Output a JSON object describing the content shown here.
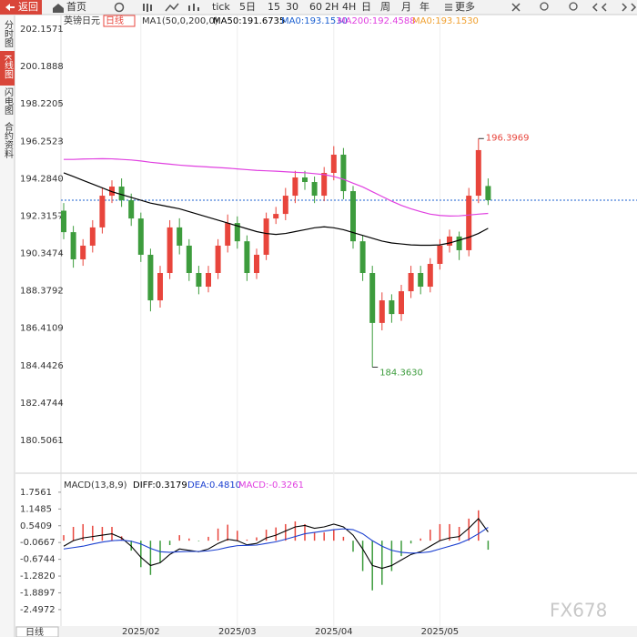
{
  "toolbar": [
    "返回",
    "首页",
    "tick",
    "5日",
    "15",
    "30",
    "60",
    "2H",
    "4H",
    "日",
    "周",
    "月",
    "年",
    "更多"
  ],
  "sidebar": [
    "分时图",
    "K线图",
    "闪电图",
    "合约资料"
  ],
  "bottom_button": "日线",
  "watermark": "FX678",
  "chart_data": [
    {
      "type": "candlestick",
      "title": "英镑日元",
      "period_label": "日线",
      "indicator": "MA1(50,0,200,0)",
      "categories": [
        null,
        null,
        null,
        null,
        null,
        null,
        null,
        null,
        "2025/02",
        null,
        null,
        null,
        null,
        null,
        null,
        null,
        null,
        null,
        "2025/03",
        null,
        null,
        null,
        null,
        null,
        null,
        null,
        null,
        null,
        "2025/04",
        null,
        null,
        null,
        null,
        null,
        null,
        null,
        null,
        null,
        null,
        "2025/05",
        null,
        null,
        null,
        null,
        null
      ],
      "open": [
        192.6,
        191.47,
        190.04,
        190.76,
        191.72,
        193.39,
        193.87,
        193.15,
        192.19,
        190.28,
        187.88,
        189.32,
        191.72,
        190.76,
        189.32,
        188.6,
        189.32,
        190.76,
        191.95,
        190.99,
        189.32,
        190.28,
        192.19,
        192.43,
        193.39,
        194.35,
        194.11,
        193.39,
        194.59,
        195.55,
        193.63,
        190.99,
        189.32,
        186.69,
        187.88,
        187.16,
        188.36,
        189.32,
        188.6,
        189.8,
        190.76,
        191.24,
        190.52,
        193.39,
        193.9
      ],
      "high": [
        193.0,
        191.8,
        191.1,
        192.1,
        193.8,
        194.2,
        194.3,
        193.5,
        192.5,
        190.6,
        189.7,
        192.1,
        192.2,
        191.1,
        189.7,
        189.7,
        191.1,
        192.4,
        192.3,
        191.3,
        190.6,
        192.5,
        192.8,
        193.8,
        194.7,
        194.7,
        194.4,
        194.9,
        196.0,
        195.9,
        193.9,
        191.3,
        189.7,
        188.3,
        188.2,
        188.7,
        189.7,
        189.7,
        190.1,
        191.1,
        191.6,
        191.5,
        193.8,
        196.3969,
        194.3
      ],
      "low": [
        191.1,
        189.6,
        189.7,
        190.4,
        191.4,
        193.0,
        192.8,
        191.8,
        189.9,
        187.3,
        187.5,
        189.0,
        190.3,
        188.9,
        188.2,
        188.3,
        189.0,
        190.4,
        190.6,
        188.9,
        189.0,
        190.0,
        191.9,
        192.1,
        193.0,
        193.7,
        193.0,
        193.1,
        194.2,
        193.2,
        190.6,
        188.9,
        184.363,
        186.3,
        186.7,
        186.8,
        188.0,
        188.2,
        188.3,
        189.5,
        190.4,
        190.0,
        190.2,
        193.0,
        192.9
      ],
      "close": [
        191.47,
        190.04,
        190.76,
        191.72,
        193.39,
        193.87,
        193.15,
        192.19,
        190.28,
        187.88,
        189.32,
        191.72,
        190.76,
        189.32,
        188.6,
        189.32,
        190.76,
        191.95,
        190.99,
        189.32,
        190.28,
        192.19,
        192.43,
        193.39,
        194.35,
        194.11,
        193.39,
        194.59,
        195.55,
        193.63,
        190.99,
        189.32,
        186.69,
        187.88,
        187.16,
        188.36,
        189.32,
        188.6,
        189.8,
        190.76,
        191.24,
        190.52,
        193.39,
        195.79,
        193.153
      ],
      "up_color": "#e8453c",
      "down_color": "#3d9c3d",
      "series": [
        {
          "name": "MA50:191.6735",
          "color": "#000000",
          "values": [
            194.59,
            194.4,
            194.2,
            194.0,
            193.8,
            193.6,
            193.45,
            193.3,
            193.15,
            193.0,
            192.9,
            192.8,
            192.7,
            192.55,
            192.4,
            192.25,
            192.1,
            191.95,
            191.8,
            191.65,
            191.5,
            191.4,
            191.35,
            191.4,
            191.5,
            191.6,
            191.7,
            191.75,
            191.7,
            191.6,
            191.45,
            191.3,
            191.15,
            191.0,
            190.9,
            190.85,
            190.8,
            190.78,
            190.78,
            190.8,
            190.9,
            191.05,
            191.2,
            191.4,
            191.6735
          ]
        },
        {
          "name": "MA200:192.4588",
          "color": "#e040e0",
          "values": [
            195.3,
            195.3,
            195.32,
            195.33,
            195.34,
            195.33,
            195.3,
            195.27,
            195.22,
            195.15,
            195.1,
            195.05,
            195.0,
            194.96,
            194.93,
            194.9,
            194.87,
            194.84,
            194.8,
            194.76,
            194.72,
            194.7,
            194.68,
            194.65,
            194.62,
            194.6,
            194.55,
            194.5,
            194.4,
            194.25,
            194.05,
            193.85,
            193.6,
            193.35,
            193.1,
            192.88,
            192.7,
            192.55,
            192.42,
            192.35,
            192.32,
            192.33,
            192.37,
            192.42,
            192.4588
          ]
        }
      ],
      "last_price": {
        "name": "MA0:193.1530",
        "value": 193.153,
        "color": "#1a5fd0"
      },
      "legend_extra": {
        "name": "MA0:193.1530",
        "color": "#f0a030"
      },
      "extremes": [
        {
          "value": 196.3969,
          "label": "196.3969",
          "color": "#e8453c"
        },
        {
          "value": 184.363,
          "label": "184.3630",
          "color": "#3d9c3d"
        }
      ],
      "ylim": [
        179.02,
        202.83
      ],
      "yticks": [
        202.1571,
        200.1888,
        198.2205,
        196.2523,
        {
          "value": 194.284,
          "label": "194.2840"
        },
        192.3157,
        190.3474,
        188.3792,
        186.4109,
        184.4426,
        182.4744,
        180.5061
      ]
    },
    {
      "type": "macd",
      "title": "MACD(13,8,9)",
      "series": [
        {
          "name": "DIFF:0.3179",
          "color": "#000000",
          "values": [
            -0.2,
            0.0,
            0.1,
            0.15,
            0.2,
            0.25,
            0.1,
            -0.2,
            -0.6,
            -0.9,
            -0.8,
            -0.5,
            -0.3,
            -0.35,
            -0.4,
            -0.3,
            -0.1,
            0.05,
            0.0,
            -0.15,
            -0.1,
            0.1,
            0.2,
            0.35,
            0.5,
            0.55,
            0.45,
            0.5,
            0.6,
            0.5,
            0.2,
            -0.3,
            -0.9,
            -1.0,
            -0.9,
            -0.7,
            -0.5,
            -0.4,
            -0.2,
            0.0,
            0.1,
            0.15,
            0.45,
            0.8,
            0.3179
          ]
        },
        {
          "name": "DEA:0.4810",
          "color": "#1a3fd0",
          "values": [
            -0.3,
            -0.25,
            -0.2,
            -0.12,
            -0.05,
            0.0,
            0.02,
            -0.02,
            -0.12,
            -0.28,
            -0.4,
            -0.42,
            -0.4,
            -0.39,
            -0.39,
            -0.37,
            -0.32,
            -0.24,
            -0.18,
            -0.17,
            -0.16,
            -0.1,
            -0.04,
            0.05,
            0.15,
            0.25,
            0.3,
            0.35,
            0.4,
            0.43,
            0.4,
            0.25,
            0.0,
            -0.2,
            -0.35,
            -0.42,
            -0.45,
            -0.44,
            -0.4,
            -0.3,
            -0.2,
            -0.1,
            0.05,
            0.25,
            0.481
          ]
        }
      ],
      "histogram": {
        "name": "MACD:-0.3261",
        "color": "#e040e0",
        "up_color": "#e8453c",
        "down_color": "#3d9c3d",
        "values": [
          0.2,
          0.5,
          0.6,
          0.54,
          0.5,
          0.5,
          0.16,
          -0.36,
          -0.96,
          -1.24,
          -0.8,
          -0.16,
          0.2,
          0.08,
          -0.02,
          0.14,
          0.44,
          0.58,
          0.36,
          0.04,
          0.12,
          0.4,
          0.48,
          0.6,
          0.7,
          0.6,
          0.3,
          0.3,
          0.4,
          0.14,
          -0.4,
          -1.1,
          -1.8,
          -1.6,
          -1.1,
          -0.56,
          -0.1,
          0.08,
          0.4,
          0.6,
          0.6,
          0.5,
          0.8,
          1.1,
          -0.3261
        ]
      },
      "ylim": [
        -2.83,
        2.28
      ],
      "yticks": [
        1.7561,
        1.1485,
        0.5409,
        -0.0667,
        -0.6744,
        {
          "value": -1.282,
          "label": "-1.2820"
        },
        -1.8897,
        -2.4972
      ]
    }
  ]
}
